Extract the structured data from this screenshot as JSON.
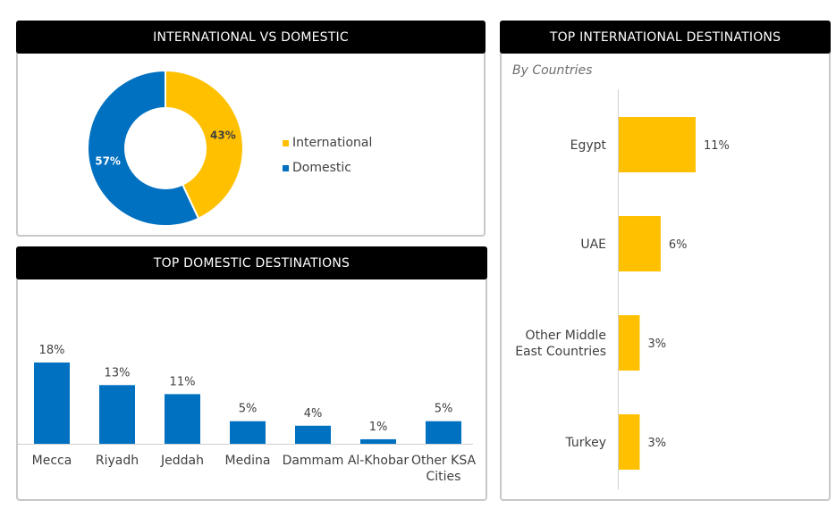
{
  "panels": {
    "intl_vs_domestic": {
      "title": "INTERNATIONAL VS DOMESTIC"
    },
    "top_domestic": {
      "title": "TOP DOMESTIC DESTINATIONS"
    },
    "top_international": {
      "title": "TOP INTERNATIONAL DESTINATIONS",
      "subtitle": "By Countries"
    }
  },
  "colors": {
    "international": "#FFC000",
    "domestic": "#0070C0",
    "header_bg": "#000000"
  },
  "chart_data": [
    {
      "type": "pie",
      "variant": "donut",
      "title": "INTERNATIONAL VS DOMESTIC",
      "legend_position": "right",
      "slices": [
        {
          "label": "International",
          "value": 43,
          "display": "43%",
          "color": "#FFC000"
        },
        {
          "label": "Domestic",
          "value": 57,
          "display": "57%",
          "color": "#0070C0"
        }
      ]
    },
    {
      "type": "bar",
      "orientation": "vertical",
      "title": "TOP DOMESTIC DESTINATIONS",
      "categories": [
        "Mecca",
        "Riyadh",
        "Jeddah",
        "Medina",
        "Dammam",
        "Al-Khobar",
        "Other KSA Cities"
      ],
      "values": [
        18,
        13,
        11,
        5,
        4,
        1,
        5
      ],
      "labels": [
        "18%",
        "13%",
        "11%",
        "5%",
        "4%",
        "1%",
        "5%"
      ],
      "color": "#0070C0",
      "ylim": [
        0,
        18
      ],
      "grid": false
    },
    {
      "type": "bar",
      "orientation": "horizontal",
      "title": "TOP INTERNATIONAL DESTINATIONS",
      "subtitle": "By Countries",
      "categories": [
        "Egypt",
        "UAE",
        "Other Middle East Countries",
        "Turkey"
      ],
      "values": [
        11,
        6,
        3,
        3
      ],
      "labels": [
        "11%",
        "6%",
        "3%",
        "3%"
      ],
      "color": "#FFC000",
      "xlim": [
        0,
        11
      ],
      "grid": false
    }
  ]
}
